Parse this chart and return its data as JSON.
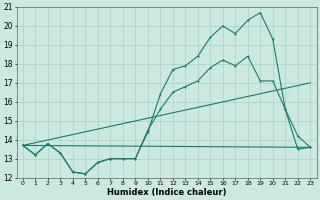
{
  "title": "",
  "xlabel": "Humidex (Indice chaleur)",
  "xlim": [
    -0.5,
    23.5
  ],
  "ylim": [
    12,
    21
  ],
  "yticks": [
    12,
    13,
    14,
    15,
    16,
    17,
    18,
    19,
    20,
    21
  ],
  "xticks": [
    0,
    1,
    2,
    3,
    4,
    5,
    6,
    7,
    8,
    9,
    10,
    11,
    12,
    13,
    14,
    15,
    16,
    17,
    18,
    19,
    20,
    21,
    22,
    23
  ],
  "bg_color": "#cce8e0",
  "line_color": "#1a7a6e",
  "grid_color": "#aacfc8",
  "line1_x": [
    0,
    1,
    2,
    3,
    4,
    5,
    6,
    7,
    8,
    9,
    10,
    11,
    12,
    13,
    14,
    15,
    16,
    17,
    18,
    19,
    20,
    21,
    22,
    23
  ],
  "line1_y": [
    13.7,
    13.2,
    13.8,
    13.3,
    12.3,
    12.2,
    12.8,
    13.0,
    13.0,
    13.0,
    14.4,
    16.4,
    17.7,
    17.9,
    18.4,
    19.4,
    20.0,
    19.6,
    20.3,
    20.7,
    19.3,
    15.6,
    14.2,
    13.6
  ],
  "line2_x": [
    0,
    1,
    2,
    3,
    4,
    5,
    6,
    7,
    8,
    9,
    10,
    11,
    12,
    13,
    14,
    15,
    16,
    17,
    18,
    19,
    20,
    21,
    22,
    23
  ],
  "line2_y": [
    13.7,
    13.2,
    13.8,
    13.3,
    12.3,
    12.2,
    12.8,
    13.0,
    13.0,
    13.0,
    14.5,
    15.6,
    16.5,
    16.8,
    17.1,
    17.8,
    18.2,
    17.9,
    18.4,
    17.1,
    17.1,
    15.6,
    13.5,
    13.6
  ],
  "line3_x": [
    0,
    23
  ],
  "line3_y": [
    13.7,
    13.6
  ],
  "line4_x": [
    0,
    23
  ],
  "line4_y": [
    13.7,
    17.0
  ]
}
